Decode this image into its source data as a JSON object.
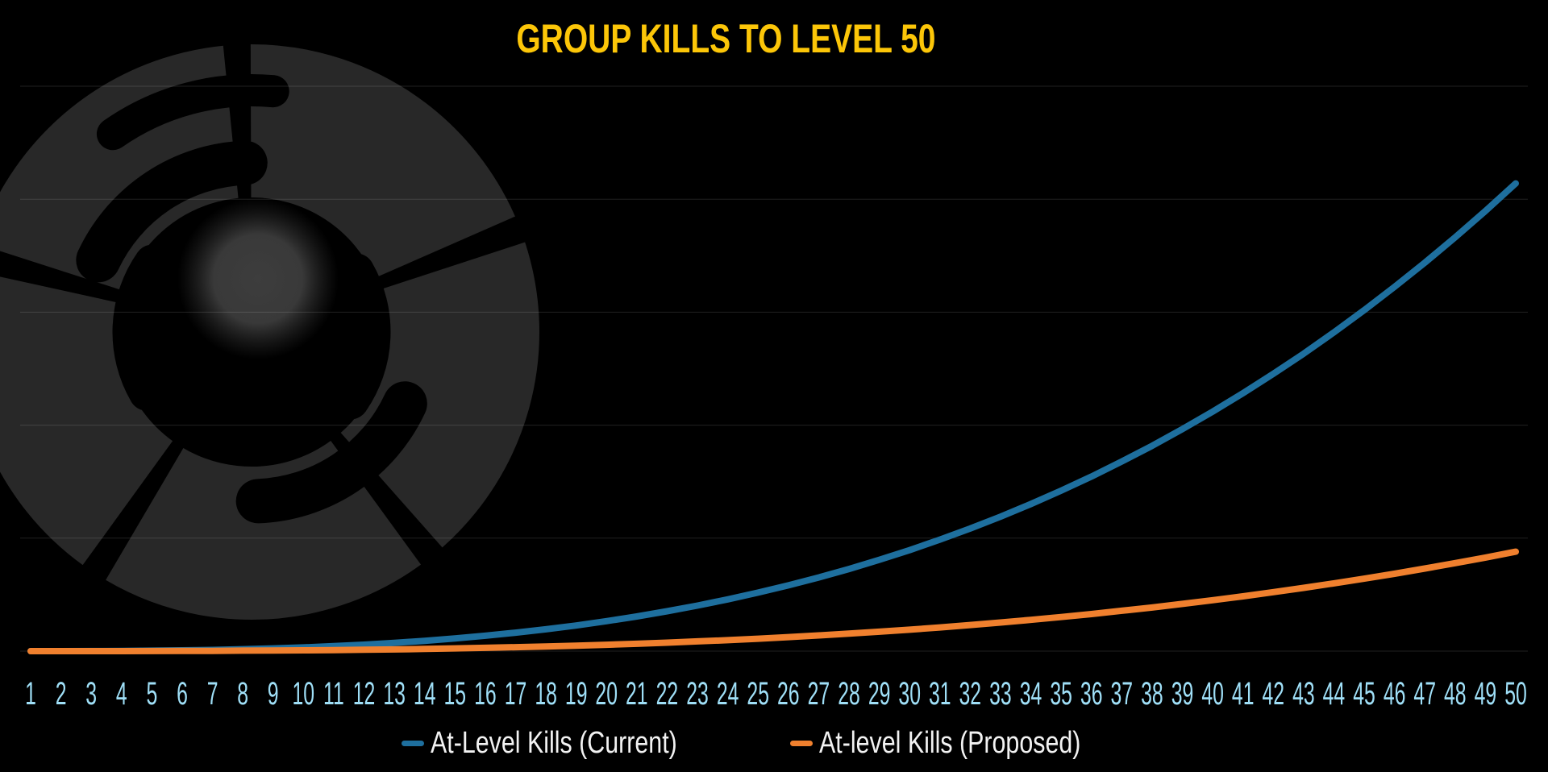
{
  "title": "GROUP KILLS TO LEVEL 50",
  "title_color": "#fcc608",
  "background_color": "#000000",
  "watermark": "broken-swirl-emblem",
  "legend": {
    "items": [
      {
        "label": "At-Level Kills (Current)",
        "color": "#1e6f9e"
      },
      {
        "label": "At-level Kills (Proposed)",
        "color": "#f0802e"
      }
    ]
  },
  "chart_data": {
    "type": "line",
    "title": "GROUP KILLS TO LEVEL 50",
    "xlabel": "",
    "ylabel": "",
    "x": [
      1,
      2,
      3,
      4,
      5,
      6,
      7,
      8,
      9,
      10,
      11,
      12,
      13,
      14,
      15,
      16,
      17,
      18,
      19,
      20,
      21,
      22,
      23,
      24,
      25,
      26,
      27,
      28,
      29,
      30,
      31,
      32,
      33,
      34,
      35,
      36,
      37,
      38,
      39,
      40,
      41,
      42,
      43,
      44,
      45,
      46,
      47,
      48,
      49,
      50
    ],
    "x_tick_color": "#9fdff7",
    "y_axis_visible": false,
    "y_units": "gridline-intervals (y-axis unlabeled; values estimated from gridlines)",
    "ylim": [
      0,
      5
    ],
    "grid": "horizontal",
    "legend_position": "bottom",
    "series": [
      {
        "name": "At-Level Kills (Current)",
        "color": "#1e6f9e",
        "values": [
          0.0,
          0.0,
          0.001,
          0.002,
          0.004,
          0.007,
          0.011,
          0.017,
          0.024,
          0.033,
          0.044,
          0.057,
          0.073,
          0.091,
          0.112,
          0.136,
          0.163,
          0.193,
          0.227,
          0.265,
          0.307,
          0.353,
          0.403,
          0.458,
          0.518,
          0.582,
          0.652,
          0.727,
          0.808,
          0.894,
          0.987,
          1.085,
          1.19,
          1.302,
          1.42,
          1.545,
          1.678,
          1.817,
          1.965,
          2.12,
          2.283,
          2.454,
          2.633,
          2.821,
          3.018,
          3.224,
          3.438,
          3.662,
          3.896,
          4.14
        ]
      },
      {
        "name": "At-level Kills (Proposed)",
        "color": "#f0802e",
        "values": [
          0.0,
          0.0,
          0.0,
          0.0,
          0.001,
          0.002,
          0.002,
          0.004,
          0.005,
          0.007,
          0.009,
          0.012,
          0.015,
          0.019,
          0.024,
          0.029,
          0.035,
          0.041,
          0.048,
          0.056,
          0.065,
          0.075,
          0.086,
          0.097,
          0.11,
          0.124,
          0.139,
          0.155,
          0.172,
          0.19,
          0.21,
          0.231,
          0.253,
          0.277,
          0.302,
          0.328,
          0.357,
          0.386,
          0.418,
          0.451,
          0.485,
          0.522,
          0.56,
          0.6,
          0.641,
          0.685,
          0.731,
          0.779,
          0.828,
          0.88
        ]
      }
    ]
  }
}
